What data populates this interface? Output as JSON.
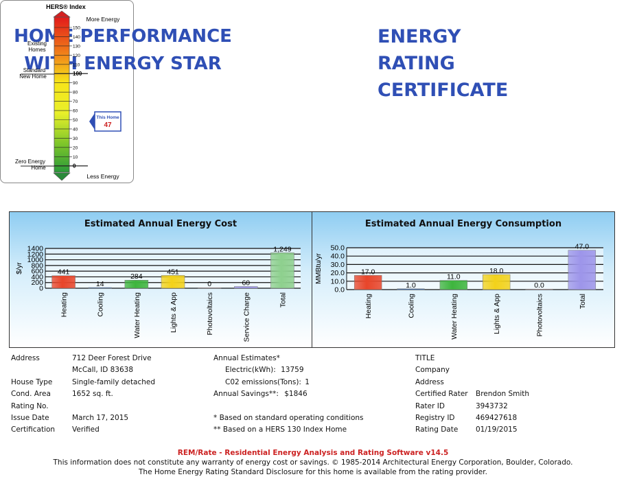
{
  "left_title": [
    "HOME PERFORMANCE",
    "WITH ENERGY STAR"
  ],
  "right_title": [
    "ENERGY",
    "RATING",
    "CERTIFICATE"
  ],
  "hers": {
    "title": "HERS® Index",
    "more_energy": "More Energy",
    "less_energy": "Less Energy",
    "existing_homes": [
      "Existing",
      "Homes"
    ],
    "standard_new_home": [
      "Standard",
      "New Home"
    ],
    "zero_energy_home": [
      "Zero Energy",
      "Home"
    ],
    "this_home_label": "This Home",
    "this_home_value": 47,
    "scale_ticks": [
      150,
      140,
      130,
      120,
      110,
      100,
      90,
      80,
      70,
      60,
      50,
      40,
      30,
      20,
      10,
      0
    ]
  },
  "cost_chart": {
    "title": "Estimated Annual Energy Cost",
    "chart_data": {
      "type": "bar",
      "ylabel": "$/yr",
      "ylim": [
        0,
        1400
      ],
      "yticks": [
        0,
        200,
        400,
        600,
        800,
        1000,
        1200,
        1400
      ],
      "categories": [
        "Heating",
        "Cooling",
        "Water Heating",
        "Lights & App",
        "Photovoltaics",
        "Service Charge",
        "Total"
      ],
      "values": [
        441,
        14,
        284,
        451,
        0,
        60,
        1249
      ],
      "labels": [
        "441",
        "14",
        "284",
        "451",
        "0",
        "60",
        "1,249"
      ],
      "colors": [
        "#e8452a",
        "#3a74c4",
        "#3eb53e",
        "#f3d21a",
        "#f3b9b9",
        "#9d95ea",
        "#8ed08e"
      ]
    }
  },
  "consumption_chart": {
    "title": "Estimated Annual Energy Consumption",
    "chart_data": {
      "type": "bar",
      "ylabel": "MMBtu/yr",
      "ylim": [
        0,
        50
      ],
      "yticks": [
        "0.0",
        "10.0",
        "20.0",
        "30.0",
        "40.0",
        "50.0"
      ],
      "categories": [
        "Heating",
        "Cooling",
        "Water Heating",
        "Lights & App",
        "Photovoltaics",
        "Total"
      ],
      "values": [
        17.0,
        1.0,
        11.0,
        18.0,
        0.0,
        47.0
      ],
      "labels": [
        "17.0",
        "1.0",
        "11.0",
        "18.0",
        "0.0",
        "47.0"
      ],
      "colors": [
        "#e8452a",
        "#3a74c4",
        "#3eb53e",
        "#f3d21a",
        "#f3b9b9",
        "#9d95ea"
      ]
    }
  },
  "info_left": {
    "labels": [
      "Address",
      "",
      "House Type",
      "Cond. Area",
      "Rating No.",
      "Issue Date",
      "Certification"
    ],
    "values": [
      "712 Deer Forest Drive",
      "McCall, ID 83638",
      "Single-family detached",
      "1652 sq. ft.",
      "",
      "March 17, 2015",
      "Verified"
    ]
  },
  "info_mid": {
    "annual_estimates": "Annual Estimates*",
    "electric_label": "Electric(kWh):",
    "electric_value": "13759",
    "co2_label": "C02 emissions(Tons):",
    "co2_value": "1",
    "savings_label": "Annual Savings**:",
    "savings_value": "$1846",
    "note1": "* Based on standard operating conditions",
    "note2": "** Based on a HERS 130 Index Home"
  },
  "info_right": {
    "labels": [
      "TITLE",
      "Company",
      "Address",
      "Certified Rater",
      "Rater ID",
      "Registry ID",
      "Rating Date"
    ],
    "values": [
      "",
      "",
      "",
      "Brendon Smith",
      "3943732",
      "469427618",
      "01/19/2015"
    ]
  },
  "footer": {
    "software": "REM/Rate - Residential Energy Analysis and Rating Software v14.5",
    "disclaimer": "This information does not constitute any warranty of energy cost or savings. © 1985-2014 Architectural Energy Corporation, Boulder, Colorado.",
    "disclosure": "The Home Energy Rating Standard Disclosure for this home is available from the rating provider."
  },
  "colors": {
    "title_blue": "#2f4fb5",
    "footer_red": "#cc2222"
  }
}
